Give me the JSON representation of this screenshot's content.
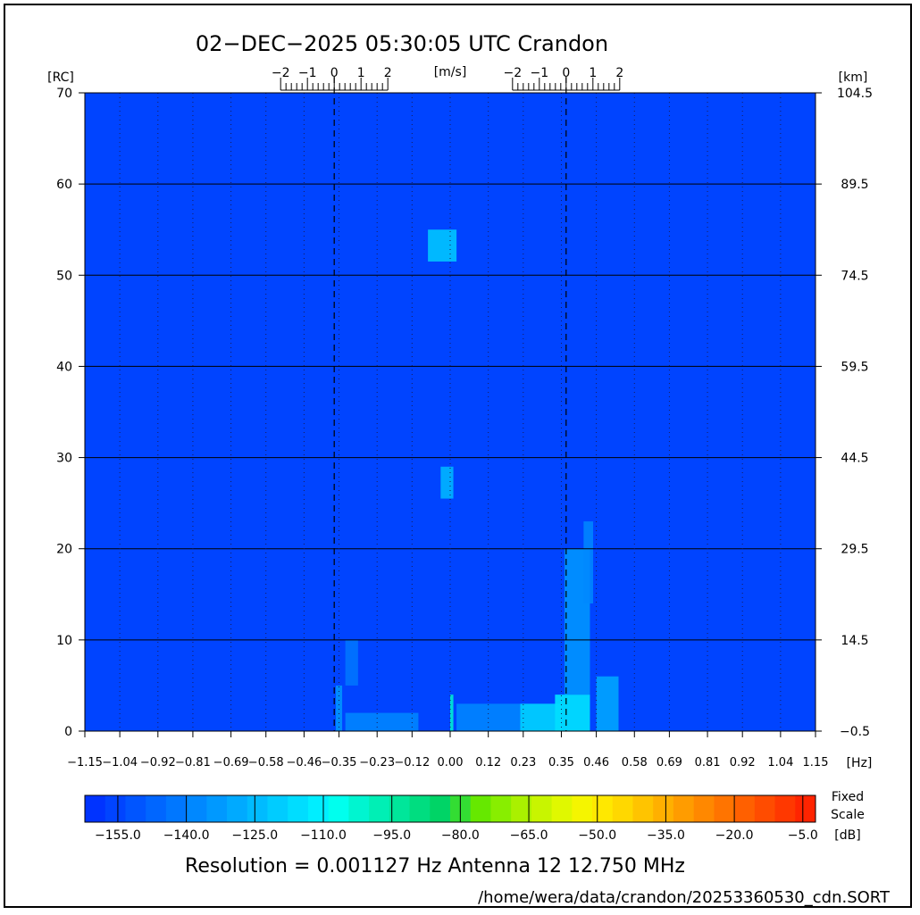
{
  "header": {
    "title": "02−DEC−2025 05:30:05 UTC   Crandon"
  },
  "chart_data": {
    "type": "heatmap",
    "title": "02−DEC−2025 05:30:05 UTC   Crandon",
    "xlabel_unit": "[Hz]",
    "ylabel_left_unit": "[RC]",
    "ylabel_right_unit": "[km]",
    "top_axis_unit": "[m/s]",
    "xlim": [
      -1.15,
      1.15
    ],
    "ylim": [
      0,
      70
    ],
    "x_ticks": [
      -1.15,
      -1.04,
      -0.92,
      -0.81,
      -0.69,
      -0.58,
      -0.46,
      -0.35,
      -0.23,
      -0.12,
      0.0,
      0.12,
      0.23,
      0.35,
      0.46,
      0.58,
      0.69,
      0.81,
      0.92,
      1.04,
      1.15
    ],
    "x_tick_labels": [
      "−1.15",
      "−1.04",
      "−0.92",
      "−0.81",
      "−0.69",
      "−0.58",
      "−0.46",
      "−0.35",
      "−0.23",
      "−0.12",
      "0.00",
      "0.12",
      "0.23",
      "0.35",
      "0.46",
      "0.58",
      "0.69",
      "0.81",
      "0.92",
      "1.04",
      "1.15"
    ],
    "y_ticks_left": [
      0,
      10,
      20,
      30,
      40,
      50,
      60,
      70
    ],
    "y_tick_labels_left": [
      "0",
      "10",
      "20",
      "30",
      "40",
      "50",
      "60",
      "70"
    ],
    "y_tick_labels_right": [
      "−0.5",
      "14.5",
      "29.5",
      "44.5",
      "59.5",
      "74.5",
      "89.5",
      "104.5"
    ],
    "bragg_lines_hz": [
      -0.365,
      0.365
    ],
    "velocity_scales": [
      {
        "center_hz": -0.365,
        "labels": [
          "−2",
          "−1",
          "0",
          "1",
          "2"
        ]
      },
      {
        "center_hz": 0.365,
        "labels": [
          "−2",
          "−1",
          "0",
          "1",
          "2"
        ]
      }
    ],
    "background_db": -155,
    "signal_patches": [
      {
        "x0": -0.07,
        "x1": 0.02,
        "y0": 51.5,
        "y1": 55,
        "db": -120
      },
      {
        "x0": -0.03,
        "x1": 0.01,
        "y0": 25.5,
        "y1": 29,
        "db": -122
      },
      {
        "x0": 0.33,
        "x1": 0.44,
        "y0": 0,
        "y1": 4,
        "db": -110
      },
      {
        "x0": 0.22,
        "x1": 0.35,
        "y0": 0,
        "y1": 3,
        "db": -115
      },
      {
        "x0": 0.36,
        "x1": 0.44,
        "y0": 4,
        "y1": 20,
        "db": -130
      },
      {
        "x0": 0.42,
        "x1": 0.45,
        "y0": 14,
        "y1": 23,
        "db": -135
      },
      {
        "x0": 0.46,
        "x1": 0.53,
        "y0": 0,
        "y1": 6,
        "db": -125
      },
      {
        "x0": -0.33,
        "x1": -0.29,
        "y0": 5,
        "y1": 10,
        "db": -138
      },
      {
        "x0": -0.36,
        "x1": -0.34,
        "y0": 0,
        "y1": 5,
        "db": -130
      },
      {
        "x0": -0.33,
        "x1": -0.1,
        "y0": 0,
        "y1": 2,
        "db": -135
      },
      {
        "x0": 0.0,
        "x1": 0.01,
        "y0": 0,
        "y1": 4,
        "db": -100
      },
      {
        "x0": 0.02,
        "x1": 0.22,
        "y0": 0,
        "y1": 3,
        "db": -135
      }
    ],
    "colorbar": {
      "min": -160,
      "max": 0,
      "step": 5,
      "tick_values": [
        -155,
        -140,
        -125,
        -110,
        -95,
        -80,
        -65,
        -50,
        -35,
        -20,
        -5
      ],
      "tick_labels": [
        "−155.0",
        "−140.0",
        "−125.0",
        "−110.0",
        "−95.0",
        "−80.0",
        "−65.0",
        "−50.0",
        "−35.0",
        "−20.0",
        "−5.0"
      ],
      "label_lines": [
        "Fixed",
        "Scale",
        "[dB]"
      ],
      "colors": [
        "#0033ff",
        "#0044ff",
        "#0055ff",
        "#0066ff",
        "#0077ff",
        "#0088ff",
        "#0099ff",
        "#00aaff",
        "#00bbff",
        "#00ccff",
        "#00ddff",
        "#00eeff",
        "#00ffee",
        "#00f5d0",
        "#00efb5",
        "#00e69a",
        "#00dd80",
        "#00d466",
        "#33dd33",
        "#66e800",
        "#88ee00",
        "#aaf000",
        "#c8f500",
        "#e0f800",
        "#f5f500",
        "#ffe800",
        "#ffd800",
        "#ffc400",
        "#ffb000",
        "#ff9c00",
        "#ff8800",
        "#ff7400",
        "#ff6000",
        "#ff4c00",
        "#ff3800",
        "#ff2400"
      ]
    }
  },
  "footer": {
    "resolution": "Resolution = 0.001127 Hz   Antenna 12   12.750 MHz",
    "filepath": "/home/wera/data/crandon/20253360530_cdn.SORT"
  }
}
